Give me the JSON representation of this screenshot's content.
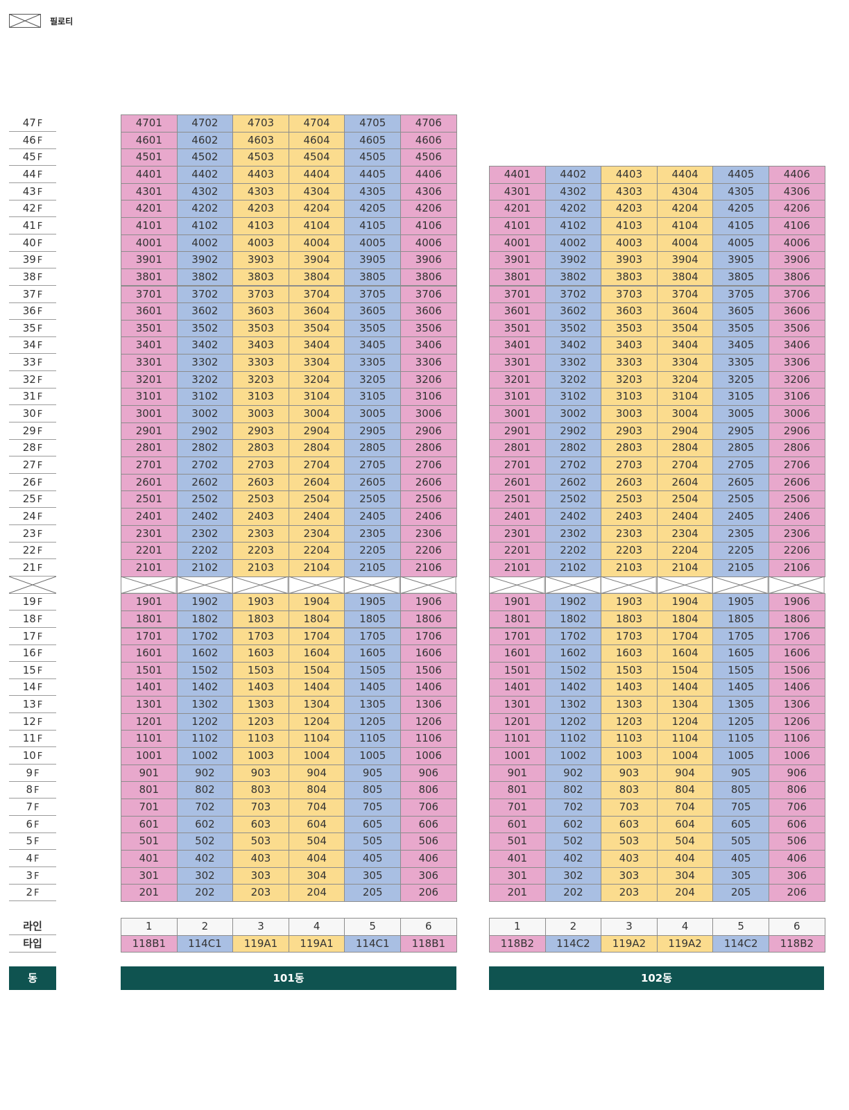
{
  "legend": {
    "label": "필로티",
    "icon": "piloti-cross-icon"
  },
  "floors": [
    "47",
    "46",
    "45",
    "44",
    "43",
    "42",
    "41",
    "40",
    "39",
    "38",
    "37",
    "36",
    "35",
    "34",
    "33",
    "32",
    "31",
    "30",
    "29",
    "28",
    "27",
    "26",
    "25",
    "24",
    "23",
    "22",
    "21",
    "",
    "19",
    "18",
    "17",
    "16",
    "15",
    "14",
    "13",
    "12",
    "11",
    "10",
    "9",
    "8",
    "7",
    "6",
    "5",
    "4",
    "3",
    "2"
  ],
  "floor_suffix": "F",
  "row_labels": {
    "line": "라인",
    "type": "타입",
    "dong": "동"
  },
  "colors": {
    "pink": "#e8a8cc",
    "blue": "#a9bfe3",
    "yellow": "#fbdc8e",
    "dong_bar": "#0f5350"
  },
  "buildings": [
    {
      "name": "101동",
      "top_floor": 47,
      "piloti_floor": 20,
      "lines": [
        "1",
        "2",
        "3",
        "4",
        "5",
        "6"
      ],
      "types": [
        "118B1",
        "114C1",
        "119A1",
        "119A1",
        "114C1",
        "118B1"
      ],
      "line_colors": [
        "pink",
        "blue",
        "yellow",
        "yellow",
        "blue",
        "pink"
      ]
    },
    {
      "name": "102동",
      "top_floor": 44,
      "piloti_floor": 20,
      "lines": [
        "1",
        "2",
        "3",
        "4",
        "5",
        "6"
      ],
      "types": [
        "118B2",
        "114C2",
        "119A2",
        "119A2",
        "114C2",
        "118B2"
      ],
      "line_colors": [
        "pink",
        "blue",
        "yellow",
        "yellow",
        "blue",
        "pink"
      ]
    }
  ]
}
